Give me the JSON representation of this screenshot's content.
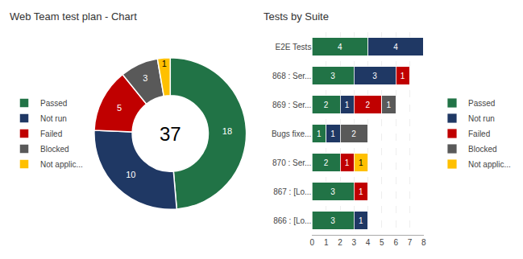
{
  "chart_data": [
    {
      "type": "donut",
      "title": "Web Team test plan - Chart",
      "categories": [
        "Passed",
        "Not run",
        "Failed",
        "Blocked",
        "Not applic..."
      ],
      "values": [
        18,
        10,
        5,
        3,
        1
      ],
      "colors": [
        "#217346",
        "#1f3864",
        "#c00000",
        "#595959",
        "#ffc000"
      ],
      "annotations": [
        "37"
      ],
      "data_labels": true,
      "legend": "left"
    },
    {
      "type": "bar",
      "title": "Tests by Suite",
      "orientation": "horizontal",
      "stacked": true,
      "categories": [
        "E2E Tests",
        "868 : Ser...",
        "869 : Ser...",
        "Bugs fixe...",
        "870 : Ser...",
        "867 : [Lo...",
        "866 : [Lo..."
      ],
      "series": [
        {
          "name": "Passed",
          "color": "#217346",
          "values": [
            4,
            3,
            2,
            1,
            2,
            3,
            3
          ]
        },
        {
          "name": "Not run",
          "color": "#1f3864",
          "values": [
            4,
            3,
            1,
            1,
            0,
            0,
            1
          ]
        },
        {
          "name": "Failed",
          "color": "#c00000",
          "values": [
            0,
            1,
            2,
            0,
            1,
            1,
            0
          ]
        },
        {
          "name": "Blocked",
          "color": "#595959",
          "values": [
            0,
            0,
            1,
            2,
            0,
            0,
            0
          ]
        },
        {
          "name": "Not applic...",
          "color": "#ffc000",
          "values": [
            0,
            0,
            0,
            0,
            1,
            0,
            0
          ]
        }
      ],
      "xlim": [
        0,
        8
      ],
      "xticks": [
        0,
        1,
        2,
        3,
        4,
        5,
        6,
        7,
        8
      ],
      "grid": true,
      "data_labels": true,
      "legend": "right"
    }
  ]
}
